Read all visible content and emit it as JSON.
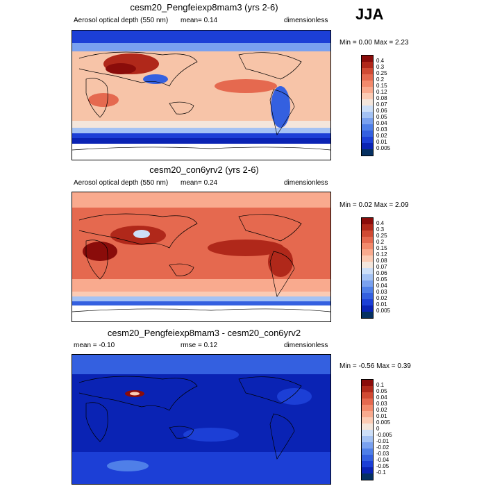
{
  "season": "JJA",
  "panels": [
    {
      "title": "cesm20_Pengfeiexp8mam3 (yrs 2-6)",
      "left_label": "Aerosol optical depth (550 nm)",
      "mean_text": "mean=   0.14",
      "right_label": "dimensionless",
      "minmax": "Min =   0.00 Max =   2.23",
      "colorbar_labels": [
        "0.4",
        "0.3",
        "0.25",
        "0.2",
        "0.15",
        "0.12",
        "0.08",
        "0.07",
        "0.06",
        "0.05",
        "0.04",
        "0.03",
        "0.02",
        "0.01",
        "0.005"
      ]
    },
    {
      "title": "cesm20_con6yrv2 (yrs 2-6)",
      "left_label": "Aerosol optical depth (550 nm)",
      "mean_text": "mean=   0.24",
      "right_label": "dimensionless",
      "minmax": "Min =   0.02 Max =   2.09",
      "colorbar_labels": [
        "0.4",
        "0.3",
        "0.25",
        "0.2",
        "0.15",
        "0.12",
        "0.08",
        "0.07",
        "0.06",
        "0.05",
        "0.04",
        "0.03",
        "0.02",
        "0.01",
        "0.005"
      ]
    },
    {
      "title": "cesm20_Pengfeiexp8mam3 - cesm20_con6yrv2",
      "left_label": "mean =  -0.10",
      "mean_text": "rmse =   0.12",
      "right_label": "dimensionless",
      "minmax": "Min =  -0.56 Max =   0.39",
      "colorbar_labels": [
        "0.1",
        "0.05",
        "0.04",
        "0.03",
        "0.02",
        "0.01",
        "0.005",
        "0",
        "-0.005",
        "-0.01",
        "-0.02",
        "-0.03",
        "-0.04",
        "-0.05",
        "-0.1"
      ]
    }
  ],
  "colors": {
    "palette": [
      "#053061",
      "#0a23b4",
      "#1c3fd6",
      "#3460e0",
      "#4f7fe8",
      "#7aa1ef",
      "#a4c2f4",
      "#cddff8",
      "#f4e6dc",
      "#fbcbb4",
      "#f9aa8e",
      "#f38a6c",
      "#e5694f",
      "#d04a33",
      "#b0281a",
      "#8a0c0a"
    ],
    "land_outline": "#000000"
  },
  "chart_data": [
    {
      "type": "heatmap",
      "title": "cesm20_Pengfeiexp8mam3 (yrs 2-6)",
      "variable": "Aerosol optical depth (550 nm)",
      "units": "dimensionless",
      "mean": 0.14,
      "min": 0.0,
      "max": 2.23,
      "levels": [
        0.005,
        0.01,
        0.02,
        0.03,
        0.04,
        0.05,
        0.06,
        0.07,
        0.08,
        0.12,
        0.15,
        0.2,
        0.25,
        0.3,
        0.4
      ],
      "description": "global lat-lon map"
    },
    {
      "type": "heatmap",
      "title": "cesm20_con6yrv2 (yrs 2-6)",
      "variable": "Aerosol optical depth (550 nm)",
      "units": "dimensionless",
      "mean": 0.24,
      "min": 0.02,
      "max": 2.09,
      "levels": [
        0.005,
        0.01,
        0.02,
        0.03,
        0.04,
        0.05,
        0.06,
        0.07,
        0.08,
        0.12,
        0.15,
        0.2,
        0.25,
        0.3,
        0.4
      ]
    },
    {
      "type": "heatmap",
      "title": "cesm20_Pengfeiexp8mam3 - cesm20_con6yrv2",
      "units": "dimensionless",
      "mean": -0.1,
      "rmse": 0.12,
      "min": -0.56,
      "max": 0.39,
      "levels": [
        -0.1,
        -0.05,
        -0.04,
        -0.03,
        -0.02,
        -0.01,
        -0.005,
        0,
        0.005,
        0.01,
        0.02,
        0.03,
        0.04,
        0.05,
        0.1
      ]
    }
  ]
}
